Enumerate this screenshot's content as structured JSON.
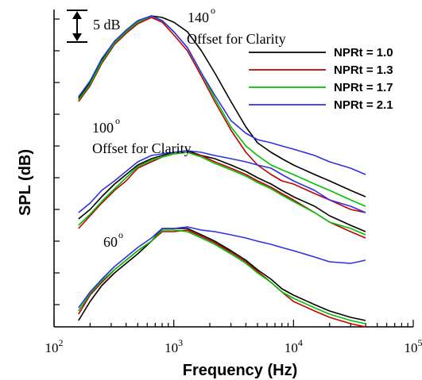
{
  "chart_data": {
    "type": "line",
    "xlabel": "Frequency (Hz)",
    "ylabel": "SPL (dB)",
    "x_scale": "log",
    "xlim": [
      100,
      100000
    ],
    "x_ticks": [
      {
        "value": 100,
        "base": "10",
        "exp": "2"
      },
      {
        "value": 1000,
        "base": "10",
        "exp": "3"
      },
      {
        "value": 10000,
        "base": "10",
        "exp": "4"
      },
      {
        "value": 100000,
        "base": "10",
        "exp": "5"
      }
    ],
    "ylim": [
      0,
      100
    ],
    "y_minor_ticks": [
      7,
      17,
      27,
      37,
      47,
      57,
      67,
      77,
      87,
      97
    ],
    "grid": false,
    "legend_position": "top-right",
    "annotations": {
      "scale_bar_label": "5 dB",
      "group_140": "140",
      "group_100": "100",
      "group_60": "60",
      "degree": "o",
      "offset_note": "Offset for Clarity"
    },
    "series": [
      {
        "name": "NPRt = 1.0",
        "color": "#000000"
      },
      {
        "name": "NPRt = 1.3",
        "color": "#c00000"
      },
      {
        "name": "NPRt = 1.7",
        "color": "#00c000"
      },
      {
        "name": "NPRt = 2.1",
        "color": "#3030e0"
      }
    ],
    "groups": [
      {
        "label": "140",
        "curves": [
          [
            [
              160,
              72
            ],
            [
              200,
              77
            ],
            [
              250,
              84
            ],
            [
              320,
              90
            ],
            [
              400,
              93
            ],
            [
              500,
              96
            ],
            [
              650,
              98
            ],
            [
              800,
              97.5
            ],
            [
              1000,
              96
            ],
            [
              1300,
              93
            ],
            [
              1700,
              87
            ],
            [
              2200,
              80
            ],
            [
              3000,
              71
            ],
            [
              4000,
              63
            ],
            [
              5000,
              58
            ],
            [
              6500,
              55
            ],
            [
              8000,
              53
            ],
            [
              10000,
              51
            ],
            [
              15000,
              48
            ],
            [
              20000,
              46
            ],
            [
              30000,
              43
            ],
            [
              40000,
              41
            ]
          ],
          [
            [
              160,
              71
            ],
            [
              200,
              76
            ],
            [
              250,
              83
            ],
            [
              320,
              89
            ],
            [
              400,
              92.5
            ],
            [
              500,
              95.5
            ],
            [
              650,
              97.5
            ],
            [
              800,
              96
            ],
            [
              1000,
              92
            ],
            [
              1300,
              87
            ],
            [
              1700,
              79
            ],
            [
              2200,
              71
            ],
            [
              3000,
              62
            ],
            [
              4000,
              55
            ],
            [
              5000,
              51
            ],
            [
              6500,
              48
            ],
            [
              8000,
              46
            ],
            [
              10000,
              45
            ],
            [
              15000,
              42
            ],
            [
              20000,
              40
            ],
            [
              30000,
              37
            ],
            [
              40000,
              36
            ]
          ],
          [
            [
              160,
              71.5
            ],
            [
              200,
              76.5
            ],
            [
              250,
              83.5
            ],
            [
              320,
              89.5
            ],
            [
              400,
              93
            ],
            [
              500,
              96
            ],
            [
              650,
              98
            ],
            [
              800,
              96.5
            ],
            [
              1000,
              93
            ],
            [
              1300,
              88
            ],
            [
              1700,
              80
            ],
            [
              2200,
              72
            ],
            [
              3000,
              63
            ],
            [
              4000,
              57
            ],
            [
              5000,
              54
            ],
            [
              6500,
              51
            ],
            [
              8000,
              49.5
            ],
            [
              10000,
              48
            ],
            [
              15000,
              45
            ],
            [
              20000,
              43
            ],
            [
              30000,
              40
            ],
            [
              40000,
              38
            ]
          ],
          [
            [
              160,
              72.5
            ],
            [
              200,
              77.5
            ],
            [
              250,
              84.5
            ],
            [
              320,
              90
            ],
            [
              400,
              93.5
            ],
            [
              500,
              96.5
            ],
            [
              650,
              98
            ],
            [
              800,
              96.5
            ],
            [
              1000,
              93
            ],
            [
              1300,
              88
            ],
            [
              1700,
              80
            ],
            [
              2200,
              73
            ],
            [
              3000,
              65
            ],
            [
              4000,
              61
            ],
            [
              5000,
              59
            ],
            [
              6500,
              58
            ],
            [
              8000,
              57
            ],
            [
              10000,
              56
            ],
            [
              15000,
              54
            ],
            [
              20000,
              52
            ],
            [
              30000,
              50
            ],
            [
              40000,
              48
            ]
          ]
        ]
      },
      {
        "label": "100",
        "curves": [
          [
            [
              160,
              34
            ],
            [
              200,
              37
            ],
            [
              250,
              41
            ],
            [
              320,
              45
            ],
            [
              400,
              48
            ],
            [
              500,
              51
            ],
            [
              650,
              53
            ],
            [
              800,
              54
            ],
            [
              1000,
              55
            ],
            [
              1300,
              55.5
            ],
            [
              1700,
              54
            ],
            [
              2200,
              53
            ],
            [
              3000,
              51
            ],
            [
              4000,
              49
            ],
            [
              5000,
              47
            ],
            [
              6500,
              45
            ],
            [
              8000,
              43
            ],
            [
              10000,
              41
            ],
            [
              15000,
              38
            ],
            [
              20000,
              35
            ],
            [
              30000,
              32
            ],
            [
              40000,
              30
            ]
          ],
          [
            [
              160,
              31
            ],
            [
              200,
              35
            ],
            [
              250,
              39
            ],
            [
              320,
              43
            ],
            [
              400,
              46
            ],
            [
              500,
              50
            ],
            [
              650,
              52
            ],
            [
              800,
              53.5
            ],
            [
              1000,
              54.5
            ],
            [
              1300,
              55
            ],
            [
              1700,
              54
            ],
            [
              2200,
              52
            ],
            [
              3000,
              50
            ],
            [
              4000,
              48
            ],
            [
              5000,
              46
            ],
            [
              6500,
              44
            ],
            [
              8000,
              42
            ],
            [
              10000,
              40
            ],
            [
              15000,
              36
            ],
            [
              20000,
              33
            ],
            [
              30000,
              30
            ],
            [
              40000,
              28
            ]
          ],
          [
            [
              160,
              32
            ],
            [
              200,
              35.5
            ],
            [
              250,
              39.5
            ],
            [
              320,
              43.5
            ],
            [
              400,
              47
            ],
            [
              500,
              50.5
            ],
            [
              650,
              52.5
            ],
            [
              800,
              53.5
            ],
            [
              1000,
              54.5
            ],
            [
              1300,
              55
            ],
            [
              1700,
              53.5
            ],
            [
              2200,
              51.5
            ],
            [
              3000,
              49.5
            ],
            [
              4000,
              47.5
            ],
            [
              5000,
              45.5
            ],
            [
              6500,
              43.5
            ],
            [
              8000,
              41.5
            ],
            [
              10000,
              39.5
            ],
            [
              15000,
              36
            ],
            [
              20000,
              33
            ],
            [
              30000,
              31
            ],
            [
              40000,
              29
            ]
          ],
          [
            [
              160,
              36
            ],
            [
              200,
              39
            ],
            [
              250,
              43
            ],
            [
              320,
              46
            ],
            [
              400,
              49
            ],
            [
              500,
              52
            ],
            [
              650,
              54
            ],
            [
              800,
              54.5
            ],
            [
              1000,
              55
            ],
            [
              1300,
              55.5
            ],
            [
              1700,
              55
            ],
            [
              2200,
              54
            ],
            [
              3000,
              53
            ],
            [
              4000,
              52
            ],
            [
              5000,
              51
            ],
            [
              6500,
              50
            ],
            [
              8000,
              48
            ],
            [
              10000,
              46
            ],
            [
              15000,
              43
            ],
            [
              20000,
              40
            ],
            [
              30000,
              38
            ],
            [
              40000,
              36
            ]
          ]
        ]
      },
      {
        "label": "60",
        "curves": [
          [
            [
              160,
              2
            ],
            [
              200,
              8
            ],
            [
              250,
              13
            ],
            [
              320,
              17
            ],
            [
              400,
              20
            ],
            [
              500,
              23
            ],
            [
              650,
              27
            ],
            [
              800,
              31
            ],
            [
              1000,
              31
            ],
            [
              1300,
              31
            ],
            [
              1700,
              29
            ],
            [
              2200,
              27
            ],
            [
              3000,
              24
            ],
            [
              4000,
              21
            ],
            [
              5000,
              18
            ],
            [
              6500,
              15
            ],
            [
              8000,
              12
            ],
            [
              10000,
              10
            ],
            [
              15000,
              7
            ],
            [
              20000,
              5
            ],
            [
              30000,
              3
            ],
            [
              40000,
              2
            ]
          ],
          [
            [
              160,
              4
            ],
            [
              200,
              10
            ],
            [
              250,
              14
            ],
            [
              320,
              18
            ],
            [
              400,
              21
            ],
            [
              500,
              24
            ],
            [
              650,
              27
            ],
            [
              800,
              30
            ],
            [
              1000,
              30
            ],
            [
              1300,
              30.5
            ],
            [
              1700,
              28.5
            ],
            [
              2200,
              26.5
            ],
            [
              3000,
              23.5
            ],
            [
              4000,
              20.5
            ],
            [
              5000,
              17.5
            ],
            [
              6500,
              14
            ],
            [
              8000,
              11
            ],
            [
              10000,
              8
            ],
            [
              15000,
              5
            ],
            [
              20000,
              3
            ],
            [
              30000,
              1
            ],
            [
              40000,
              0
            ]
          ],
          [
            [
              160,
              5
            ],
            [
              200,
              10.5
            ],
            [
              250,
              14.5
            ],
            [
              320,
              18
            ],
            [
              400,
              21
            ],
            [
              500,
              24
            ],
            [
              650,
              27
            ],
            [
              800,
              30.5
            ],
            [
              1000,
              30.5
            ],
            [
              1300,
              30
            ],
            [
              1700,
              28
            ],
            [
              2200,
              26
            ],
            [
              3000,
              23
            ],
            [
              4000,
              20
            ],
            [
              5000,
              17
            ],
            [
              6500,
              14
            ],
            [
              8000,
              11
            ],
            [
              10000,
              9
            ],
            [
              15000,
              6
            ],
            [
              20000,
              4
            ],
            [
              30000,
              2
            ],
            [
              40000,
              1
            ]
          ],
          [
            [
              160,
              6
            ],
            [
              200,
              11
            ],
            [
              250,
              15
            ],
            [
              320,
              19
            ],
            [
              400,
              22
            ],
            [
              500,
              25
            ],
            [
              650,
              28
            ],
            [
              800,
              31
            ],
            [
              1000,
              31
            ],
            [
              1300,
              31.5
            ],
            [
              1700,
              30.5
            ],
            [
              2200,
              30
            ],
            [
              3000,
              29
            ],
            [
              4000,
              28
            ],
            [
              5000,
              27
            ],
            [
              6500,
              26
            ],
            [
              8000,
              25
            ],
            [
              10000,
              24
            ],
            [
              15000,
              22
            ],
            [
              20000,
              20.5
            ],
            [
              30000,
              20
            ],
            [
              40000,
              21
            ]
          ]
        ]
      }
    ]
  }
}
